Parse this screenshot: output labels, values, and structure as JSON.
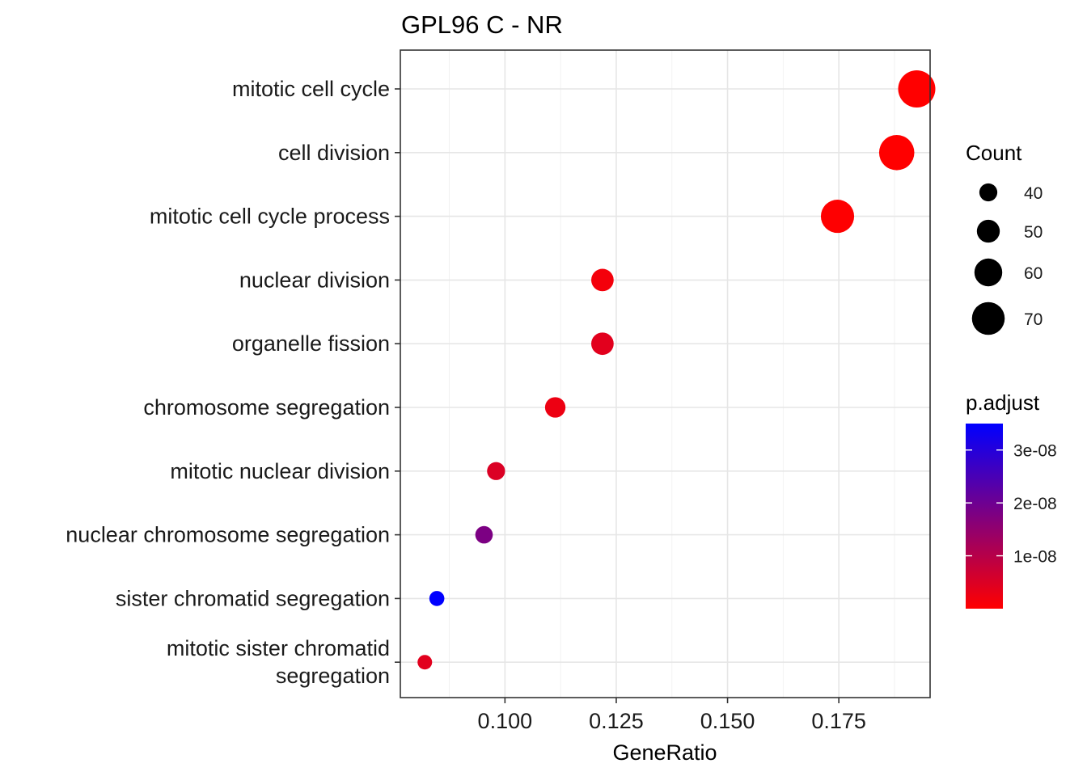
{
  "chart_data": {
    "type": "scatter",
    "title": "GPL96 C - NR",
    "xlabel": "GeneRatio",
    "ylabel": "",
    "xlim": [
      0.0765,
      0.1955
    ],
    "x_ticks": [
      0.1,
      0.125,
      0.15,
      0.175
    ],
    "x_tick_labels": [
      "0.100",
      "0.125",
      "0.150",
      "0.175"
    ],
    "categories": [
      "mitotic cell cycle",
      "cell division",
      "mitotic cell cycle process",
      "nuclear division",
      "organelle fission",
      "chromosome segregation",
      "mitotic nuclear division",
      "nuclear chromosome segregation",
      "sister chromatid segregation",
      "mitotic sister chromatid\nsegregation"
    ],
    "points": [
      {
        "term": "mitotic cell cycle",
        "gene_ratio": 0.1925,
        "count": 79,
        "p_adjust": 1e-12
      },
      {
        "term": "cell division",
        "gene_ratio": 0.188,
        "count": 75,
        "p_adjust": 5e-11
      },
      {
        "term": "mitotic cell cycle process",
        "gene_ratio": 0.1747,
        "count": 71,
        "p_adjust": 1e-10
      },
      {
        "term": "nuclear division",
        "gene_ratio": 0.1219,
        "count": 49,
        "p_adjust": 1.5e-09
      },
      {
        "term": "organelle fission",
        "gene_ratio": 0.1219,
        "count": 49,
        "p_adjust": 4e-09
      },
      {
        "term": "chromosome segregation",
        "gene_ratio": 0.1113,
        "count": 45,
        "p_adjust": 2.5e-09
      },
      {
        "term": "mitotic nuclear division",
        "gene_ratio": 0.098,
        "count": 40,
        "p_adjust": 5e-09
      },
      {
        "term": "nuclear chromosome segregation",
        "gene_ratio": 0.0953,
        "count": 39,
        "p_adjust": 1.8e-08
      },
      {
        "term": "sister chromatid segregation",
        "gene_ratio": 0.0847,
        "count": 34,
        "p_adjust": 3.5e-08
      },
      {
        "term": "mitotic sister chromatid\nsegregation",
        "gene_ratio": 0.082,
        "count": 33,
        "p_adjust": 4e-09
      }
    ],
    "legend_size": {
      "title": "Count",
      "entries": [
        {
          "label": "40",
          "value": 40
        },
        {
          "label": "50",
          "value": 50
        },
        {
          "label": "60",
          "value": 60
        },
        {
          "label": "70",
          "value": 70
        }
      ]
    },
    "legend_color": {
      "title": "p.adjust",
      "range": [
        1e-12,
        3.5e-08
      ],
      "low_color": "#FF0000",
      "high_color": "#0000FF",
      "ticks": [
        {
          "label": "1e-08",
          "value": 1e-08
        },
        {
          "label": "2e-08",
          "value": 2e-08
        },
        {
          "label": "3e-08",
          "value": 3e-08
        }
      ]
    },
    "size_range_count": [
      33,
      79
    ],
    "grid": true,
    "legend_position": "right"
  }
}
